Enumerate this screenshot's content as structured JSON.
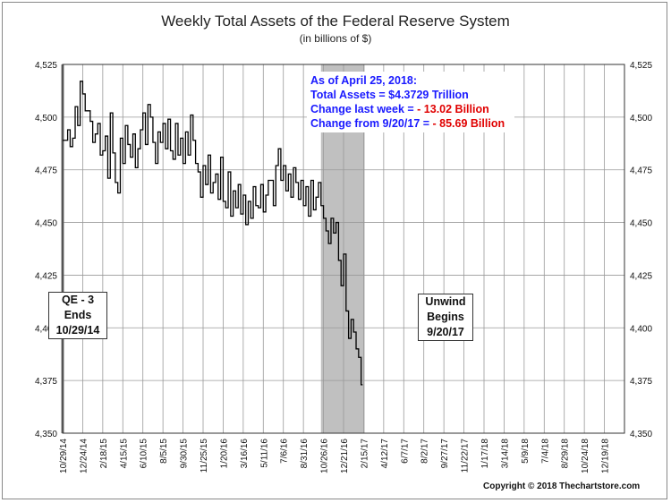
{
  "chart_data": {
    "type": "line",
    "title": "Weekly Total Assets of the Federal Reserve System",
    "subtitle": "(in billions of $)",
    "ylim": [
      4350,
      4525
    ],
    "yticks": [
      4350,
      4375,
      4400,
      4425,
      4450,
      4475,
      4500,
      4525
    ],
    "ytick_labels": [
      "4,350",
      "4,375",
      "4,400",
      "4,425",
      "4,450",
      "4,475",
      "4,500",
      "4,525"
    ],
    "xtick_labels": [
      "10/29/14",
      "12/24/14",
      "2/18/15",
      "4/15/15",
      "6/10/15",
      "8/5/15",
      "9/30/15",
      "11/25/15",
      "1/20/16",
      "3/16/16",
      "5/11/16",
      "7/6/16",
      "8/31/16",
      "10/26/16",
      "12/21/16",
      "2/15/17",
      "4/12/17",
      "6/7/17",
      "8/2/17",
      "9/27/17",
      "11/22/17",
      "1/17/18",
      "3/14/18",
      "5/9/18",
      "7/4/18",
      "8/29/18",
      "10/24/18",
      "12/19/18"
    ],
    "grid": true,
    "series": [
      {
        "values": [
          4489,
          4489,
          4494,
          4486,
          4490,
          4505,
          4496,
          4517,
          4511,
          4503,
          4503,
          4498,
          4488,
          4492,
          4497,
          4482,
          4484,
          4491,
          4471,
          4502,
          4483,
          4469,
          4464,
          4490,
          4478,
          4496,
          4487,
          4481,
          4492,
          4476,
          4485,
          4494,
          4502,
          4487,
          4506,
          4500,
          4488,
          4478,
          4493,
          4488,
          4497,
          4485,
          4499,
          4484,
          4480,
          4497,
          4482,
          4490,
          4478,
          4493,
          4482,
          4501,
          4489,
          4478,
          4474,
          4462,
          4477,
          4468,
          4482,
          4464,
          4469,
          4473,
          4461,
          4481,
          4460,
          4457,
          4474,
          4453,
          4465,
          4457,
          4468,
          4454,
          4463,
          4449,
          4460,
          4452,
          4467,
          4458,
          4457,
          4468,
          4455,
          4463,
          4470,
          4470,
          4458,
          4477,
          4485,
          4470,
          4477,
          4465,
          4473,
          4462,
          4476,
          4469,
          4461,
          4470,
          4458,
          4467,
          4453,
          4470,
          4456,
          4462,
          4469,
          4458,
          4452,
          4446,
          4440,
          4452,
          4445,
          4450,
          4432,
          4420,
          4435,
          4408,
          4395,
          4404,
          4398,
          4390,
          4386,
          4373
        ]
      }
    ],
    "shaded_start_index": 103
  },
  "info": {
    "line1": "As of April 25, 2018:",
    "line2": "Total Assets = $4.3729 Trillion",
    "line3_label": "Change last week = ",
    "line3_value": "- 13.02 Billion",
    "line4_label": "Change from 9/20/17 = ",
    "line4_value": "- 85.69 Billion"
  },
  "qe_label": {
    "line1": "QE - 3",
    "line2": "Ends",
    "line3": "10/29/14"
  },
  "unwind_label": {
    "line1": "Unwind",
    "line2": "Begins",
    "line3": "9/20/17"
  },
  "copyright": "Copyright © 2018 Thechartstore.com",
  "colors": {
    "line": "#000000",
    "shade": "#c0c0c0",
    "grid": "#999999",
    "blue_text": "#1a1aff",
    "red_text": "#e00000"
  }
}
